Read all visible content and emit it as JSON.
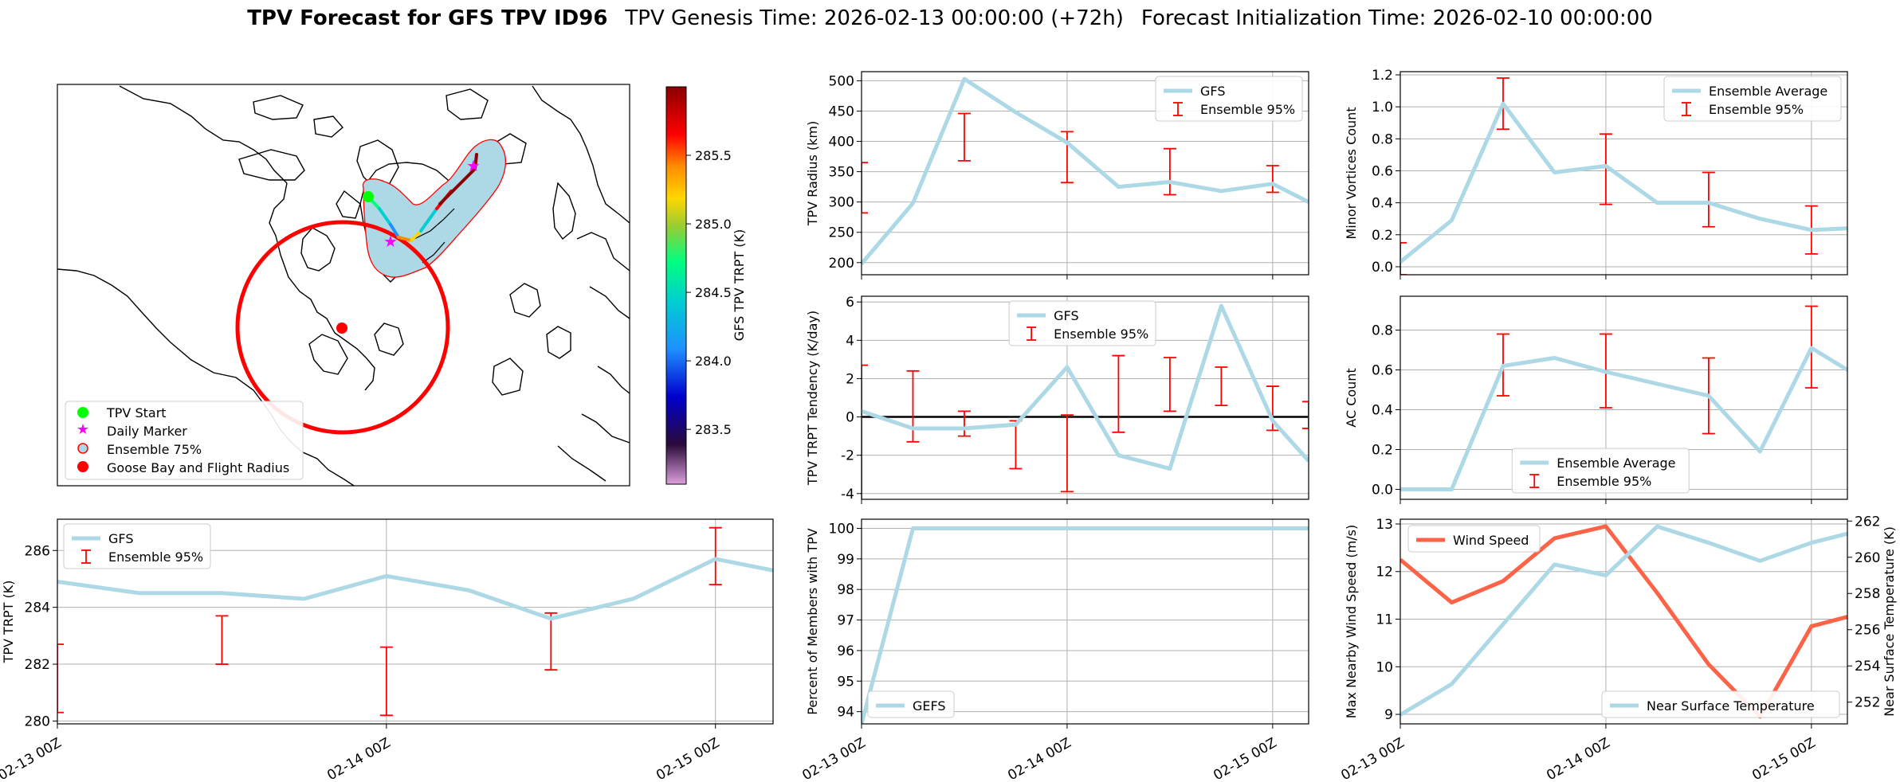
{
  "title": {
    "bold": "TPV Forecast for GFS TPV ID96",
    "genesis": "TPV Genesis Time: 2026-02-13 00:00:00 (+72h)",
    "init": "Forecast Initialization Time: 2026-02-10 00:00:00"
  },
  "colors": {
    "gfs_line": "#add8e6",
    "error_bar": "#ff0000",
    "wind": "#ff6347",
    "temp_axis": "#4169e1",
    "grid": "#b0b0b0"
  },
  "map": {
    "legend": [
      "TPV Start",
      "Daily Marker",
      "Ensemble 75%",
      "Goose Bay and Flight Radius"
    ],
    "colorbar_label": "GFS TPV TRPT (K)",
    "colorbar_ticks": [
      "285.5",
      "285.0",
      "284.5",
      "284.0",
      "283.5"
    ],
    "colorbar_values": [
      285.5,
      285.0,
      284.5,
      284.0,
      283.5
    ],
    "colorbar_range": [
      283.1,
      286.0
    ]
  },
  "chart_data": [
    {
      "id": "radius",
      "type": "line",
      "ylabel": "TPV Radius (km)",
      "ylim": [
        180,
        515
      ],
      "yticks": [
        200,
        250,
        300,
        350,
        400,
        450,
        500
      ],
      "xlim": [
        0,
        8.7
      ],
      "series": [
        {
          "name": "GFS",
          "x": [
            0,
            1,
            2,
            3,
            4,
            5,
            6,
            7,
            8,
            8.7
          ],
          "values": [
            198,
            298,
            503,
            448,
            398,
            325,
            333,
            318,
            330,
            300
          ]
        }
      ],
      "errorbars": {
        "name": "Ensemble 95%",
        "x": [
          0,
          2,
          4,
          6,
          8
        ],
        "low": [
          282,
          368,
          332,
          312,
          316
        ],
        "high": [
          365,
          446,
          416,
          388,
          360
        ]
      },
      "legend": [
        "GFS",
        "Ensemble 95%"
      ],
      "legend_pos": "top-right"
    },
    {
      "id": "vortices",
      "type": "line",
      "ylabel": "Minor Vortices Count",
      "ylim": [
        -0.05,
        1.22
      ],
      "yticks": [
        0.0,
        0.2,
        0.4,
        0.6,
        0.8,
        1.0,
        1.2
      ],
      "xlim": [
        0,
        8.7
      ],
      "series": [
        {
          "name": "Ensemble Average",
          "x": [
            0,
            1,
            2,
            3,
            4,
            5,
            6,
            7,
            8,
            8.7
          ],
          "values": [
            0.03,
            0.29,
            1.02,
            0.59,
            0.63,
            0.4,
            0.4,
            0.3,
            0.23,
            0.24
          ]
        }
      ],
      "errorbars": {
        "name": "Ensemble 95%",
        "x": [
          0,
          2,
          4,
          6,
          8
        ],
        "low": [
          -0.05,
          0.86,
          0.39,
          0.25,
          0.08
        ],
        "high": [
          0.15,
          1.18,
          0.83,
          0.59,
          0.38
        ]
      },
      "legend": [
        "Ensemble Average",
        "Ensemble 95%"
      ],
      "legend_pos": "top-right"
    },
    {
      "id": "tendency",
      "type": "line",
      "ylabel": "TPV TRPT Tendency (K/day)",
      "ylim": [
        -4.3,
        6.3
      ],
      "yticks": [
        -4,
        -2,
        0,
        2,
        4,
        6
      ],
      "xlim": [
        0,
        8.7
      ],
      "series": [
        {
          "name": "GFS",
          "x": [
            0,
            1,
            2,
            3,
            4,
            5,
            6,
            7,
            8,
            8.7
          ],
          "values": [
            0.3,
            -0.6,
            -0.6,
            -0.4,
            2.6,
            -2.0,
            -2.7,
            5.8,
            -0.2,
            -2.3
          ]
        }
      ],
      "errorbars": {
        "name": "Ensemble 95%",
        "x": [
          0,
          1,
          2,
          3,
          4,
          5,
          6,
          7,
          8,
          8.7
        ],
        "low": [
          -4.5,
          -1.3,
          -1.0,
          -2.7,
          -3.9,
          -0.8,
          0.3,
          0.6,
          -0.7,
          -0.6
        ],
        "high": [
          2.7,
          2.4,
          0.3,
          -0.2,
          0.1,
          3.2,
          3.1,
          2.6,
          1.6,
          0.8
        ]
      },
      "zero_line": true,
      "legend": [
        "GFS",
        "Ensemble 95%"
      ],
      "legend_pos": "top-center"
    },
    {
      "id": "ac",
      "type": "line",
      "ylabel": "AC Count",
      "ylim": [
        -0.05,
        0.97
      ],
      "yticks": [
        0.0,
        0.2,
        0.4,
        0.6,
        0.8
      ],
      "xlim": [
        0,
        8.7
      ],
      "series": [
        {
          "name": "Ensemble Average",
          "x": [
            0,
            1,
            2,
            3,
            4,
            5,
            6,
            7,
            8,
            8.7
          ],
          "values": [
            0.0,
            0.0,
            0.62,
            0.66,
            0.59,
            0.53,
            0.47,
            0.19,
            0.71,
            0.6
          ]
        }
      ],
      "errorbars": {
        "name": "Ensemble 95%",
        "x": [
          0,
          2,
          4,
          6,
          8
        ],
        "low": [
          0.0,
          0.47,
          0.41,
          0.28,
          0.51
        ],
        "high": [
          0.0,
          0.78,
          0.78,
          0.66,
          0.92
        ]
      },
      "legend": [
        "Ensemble Average",
        "Ensemble 95%"
      ],
      "legend_pos": "bottom-center"
    },
    {
      "id": "trpt",
      "type": "line",
      "ylabel": "TPV TRPT (K)",
      "ylim": [
        279.9,
        287.1
      ],
      "yticks": [
        280,
        282,
        284,
        286
      ],
      "xlim": [
        0,
        8.7
      ],
      "xticks": [
        0,
        4,
        8
      ],
      "xticklabels": [
        "02-13 00Z",
        "02-14 00Z",
        "02-15 00Z"
      ],
      "series": [
        {
          "name": "GFS",
          "x": [
            0,
            1,
            2,
            3,
            4,
            5,
            6,
            7,
            8,
            8.7
          ],
          "values": [
            284.9,
            284.5,
            284.5,
            284.3,
            285.1,
            284.6,
            283.6,
            284.3,
            285.7,
            285.3
          ]
        }
      ],
      "errorbars": {
        "name": "Ensemble 95%",
        "x": [
          0,
          2,
          4,
          6,
          8
        ],
        "low": [
          280.3,
          282.0,
          280.2,
          281.8,
          284.8
        ],
        "high": [
          282.7,
          283.7,
          282.6,
          283.8,
          286.8
        ]
      },
      "legend": [
        "GFS",
        "Ensemble 95%"
      ],
      "legend_pos": "top-left"
    },
    {
      "id": "members",
      "type": "line",
      "ylabel": "Percent of Members with TPV",
      "ylim": [
        93.6,
        100.3
      ],
      "yticks": [
        94,
        95,
        96,
        97,
        98,
        99,
        100
      ],
      "xlim": [
        0,
        8.7
      ],
      "xticks": [
        0,
        4,
        8
      ],
      "xticklabels": [
        "02-13 00Z",
        "02-14 00Z",
        "02-15 00Z"
      ],
      "series": [
        {
          "name": "GEFS",
          "x": [
            0,
            1,
            2,
            3,
            4,
            5,
            6,
            7,
            8,
            8.7
          ],
          "values": [
            93.6,
            100,
            100,
            100,
            100,
            100,
            100,
            100,
            100,
            100
          ]
        }
      ],
      "legend": [
        "GEFS"
      ],
      "legend_pos": "bottom-left"
    },
    {
      "id": "wind",
      "type": "line",
      "ylabel": "Max Nearby Wind Speed (m/s)",
      "ylabel2": "Near Surface Temperature (K)",
      "ylim": [
        8.8,
        13.1
      ],
      "yticks": [
        9,
        10,
        11,
        12,
        13
      ],
      "y2lim": [
        250.8,
        262.1
      ],
      "y2ticks": [
        252,
        254,
        256,
        258,
        260,
        262
      ],
      "xlim": [
        0,
        8.7
      ],
      "xticks": [
        0,
        4,
        8
      ],
      "xticklabels": [
        "02-13 00Z",
        "02-14 00Z",
        "02-15 00Z"
      ],
      "series": [
        {
          "name": "Wind Speed",
          "axis": "left",
          "x": [
            0,
            1,
            2,
            3,
            4,
            5,
            6,
            7,
            8,
            8.7
          ],
          "values": [
            12.25,
            11.35,
            11.8,
            12.7,
            12.95,
            11.55,
            10.05,
            8.95,
            10.85,
            11.05
          ]
        },
        {
          "name": "Near Surface Temperature",
          "axis": "right",
          "x": [
            0,
            1,
            2,
            3,
            4,
            5,
            6,
            7,
            8,
            8.7
          ],
          "values": [
            251.3,
            253.0,
            256.3,
            259.6,
            259.0,
            261.7,
            260.8,
            259.8,
            260.8,
            261.3
          ]
        }
      ],
      "legend": [
        "Wind Speed",
        "Near Surface Temperature"
      ]
    }
  ]
}
